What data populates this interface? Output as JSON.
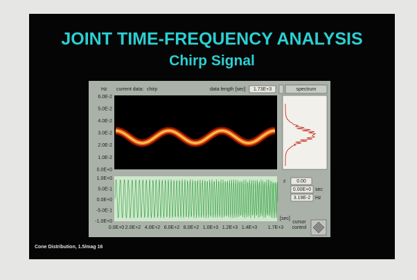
{
  "slide": {
    "title": "JOINT TIME-FREQUENCY ANALYSIS",
    "subtitle": "Chirp Signal",
    "footer": "Cone Distribution, 1.5/mag 16"
  },
  "panel": {
    "freq_unit": "Hz",
    "current_data_label": "current data:",
    "current_data_value": "chirp",
    "data_length_label": "data length [sec]",
    "data_length_value": "1.73E+3",
    "spectrum_button": "spectrum",
    "freq_ticks": [
      "6.0E-2",
      "5.0E-2",
      "4.0E-2",
      "3.0E-2",
      "2.0E-2",
      "1.0E-2",
      "0.0E+0"
    ],
    "amp_ticks": [
      "1.0E+0",
      "5.0E-1",
      "0.0E+0",
      "-5.0E-1",
      "-1.0E+0"
    ],
    "time_ticks": [
      "0.0E+0",
      "2.0E+2",
      "4.0E+2",
      "6.0E+2",
      "8.0E+2",
      "1.0E+3",
      "1.2E+3",
      "1.4E+3",
      "1.7E+3"
    ],
    "time_unit": "[sec]",
    "z_label": "z",
    "z_value": "0.00",
    "cursor_time": "0.00E+0",
    "cursor_time_unit": "sec",
    "cursor_freq": "3.19E-2",
    "cursor_freq_unit": "Hz",
    "cursor_control": "cursor control"
  }
}
